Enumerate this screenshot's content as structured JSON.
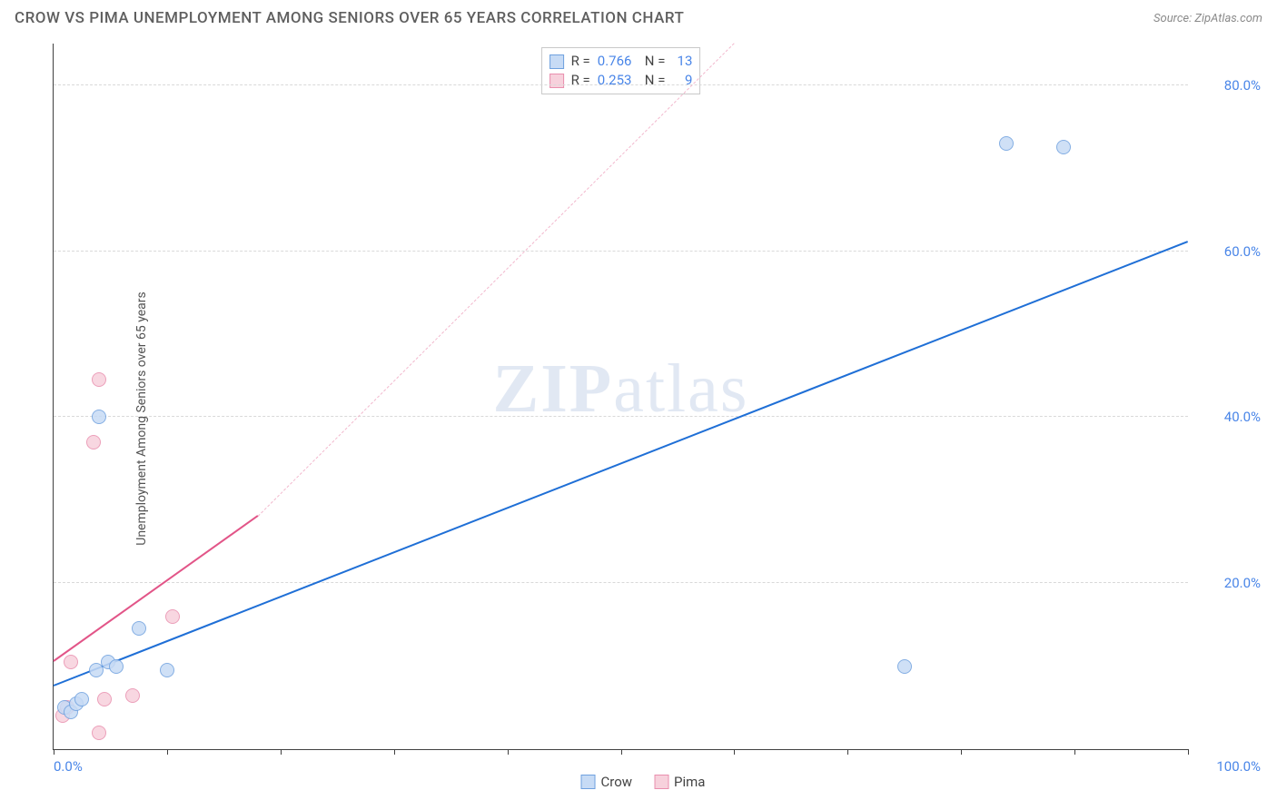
{
  "title": "CROW VS PIMA UNEMPLOYMENT AMONG SENIORS OVER 65 YEARS CORRELATION CHART",
  "source": "Source: ZipAtlas.com",
  "watermark": {
    "bold": "ZIP",
    "rest": "atlas"
  },
  "ylabel": "Unemployment Among Seniors over 65 years",
  "chart": {
    "type": "scatter",
    "xlim": [
      0,
      100
    ],
    "ylim": [
      0,
      85
    ],
    "x_tick_positions": [
      0,
      10,
      20,
      30,
      40,
      50,
      60,
      70,
      80,
      90,
      100
    ],
    "x_tick_labels": {
      "min": "0.0%",
      "max": "100.0%"
    },
    "y_ticks": [
      {
        "v": 20,
        "label": "20.0%"
      },
      {
        "v": 40,
        "label": "40.0%"
      },
      {
        "v": 60,
        "label": "60.0%"
      },
      {
        "v": 80,
        "label": "80.0%"
      }
    ],
    "grid_color": "#d9d9d9",
    "axis_color": "#404040",
    "background_color": "#ffffff",
    "marker_radius": 8,
    "marker_border_width": 1.5,
    "series": {
      "crow": {
        "label": "Crow",
        "fill": "#c7dbf5",
        "stroke": "#6fa1df",
        "fill_opacity": 0.85,
        "R": "0.766",
        "N": "13",
        "points": [
          {
            "x": 1.0,
            "y": 5.0
          },
          {
            "x": 1.5,
            "y": 4.5
          },
          {
            "x": 2.0,
            "y": 5.5
          },
          {
            "x": 2.5,
            "y": 6.0
          },
          {
            "x": 3.8,
            "y": 9.5
          },
          {
            "x": 4.8,
            "y": 10.5
          },
          {
            "x": 5.5,
            "y": 10.0
          },
          {
            "x": 7.5,
            "y": 14.5
          },
          {
            "x": 10.0,
            "y": 9.5
          },
          {
            "x": 4.0,
            "y": 40.0
          },
          {
            "x": 75.0,
            "y": 10.0
          },
          {
            "x": 84.0,
            "y": 73.0
          },
          {
            "x": 89.0,
            "y": 72.5
          }
        ],
        "trend": {
          "color": "#1f6fd6",
          "width": 2,
          "dashed": false,
          "x1": 0,
          "y1": 7.5,
          "x2": 100,
          "y2": 61.0
        }
      },
      "pima": {
        "label": "Pima",
        "fill": "#f7d1dc",
        "stroke": "#e98fae",
        "fill_opacity": 0.85,
        "R": "0.253",
        "N": "9",
        "points": [
          {
            "x": 0.8,
            "y": 4.0
          },
          {
            "x": 1.2,
            "y": 5.0
          },
          {
            "x": 1.5,
            "y": 10.5
          },
          {
            "x": 4.0,
            "y": 2.0
          },
          {
            "x": 4.5,
            "y": 6.0
          },
          {
            "x": 7.0,
            "y": 6.5
          },
          {
            "x": 10.5,
            "y": 16.0
          },
          {
            "x": 3.5,
            "y": 37.0
          },
          {
            "x": 4.0,
            "y": 44.5
          }
        ],
        "trend_solid": {
          "color": "#e25588",
          "width": 2,
          "dashed": false,
          "x1": 0,
          "y1": 10.5,
          "x2": 18,
          "y2": 28.0
        },
        "trend_dashed": {
          "color": "#f2b8cd",
          "width": 1.5,
          "dashed": true,
          "x1": 18,
          "y1": 28.0,
          "x2": 60,
          "y2": 85.0
        }
      }
    }
  },
  "stats_box": {
    "rows": [
      {
        "series": "crow",
        "r_label": "R =",
        "n_label": "N ="
      },
      {
        "series": "pima",
        "r_label": "R =",
        "n_label": "N ="
      }
    ]
  },
  "bottom_legend": [
    {
      "series": "crow"
    },
    {
      "series": "pima"
    }
  ]
}
